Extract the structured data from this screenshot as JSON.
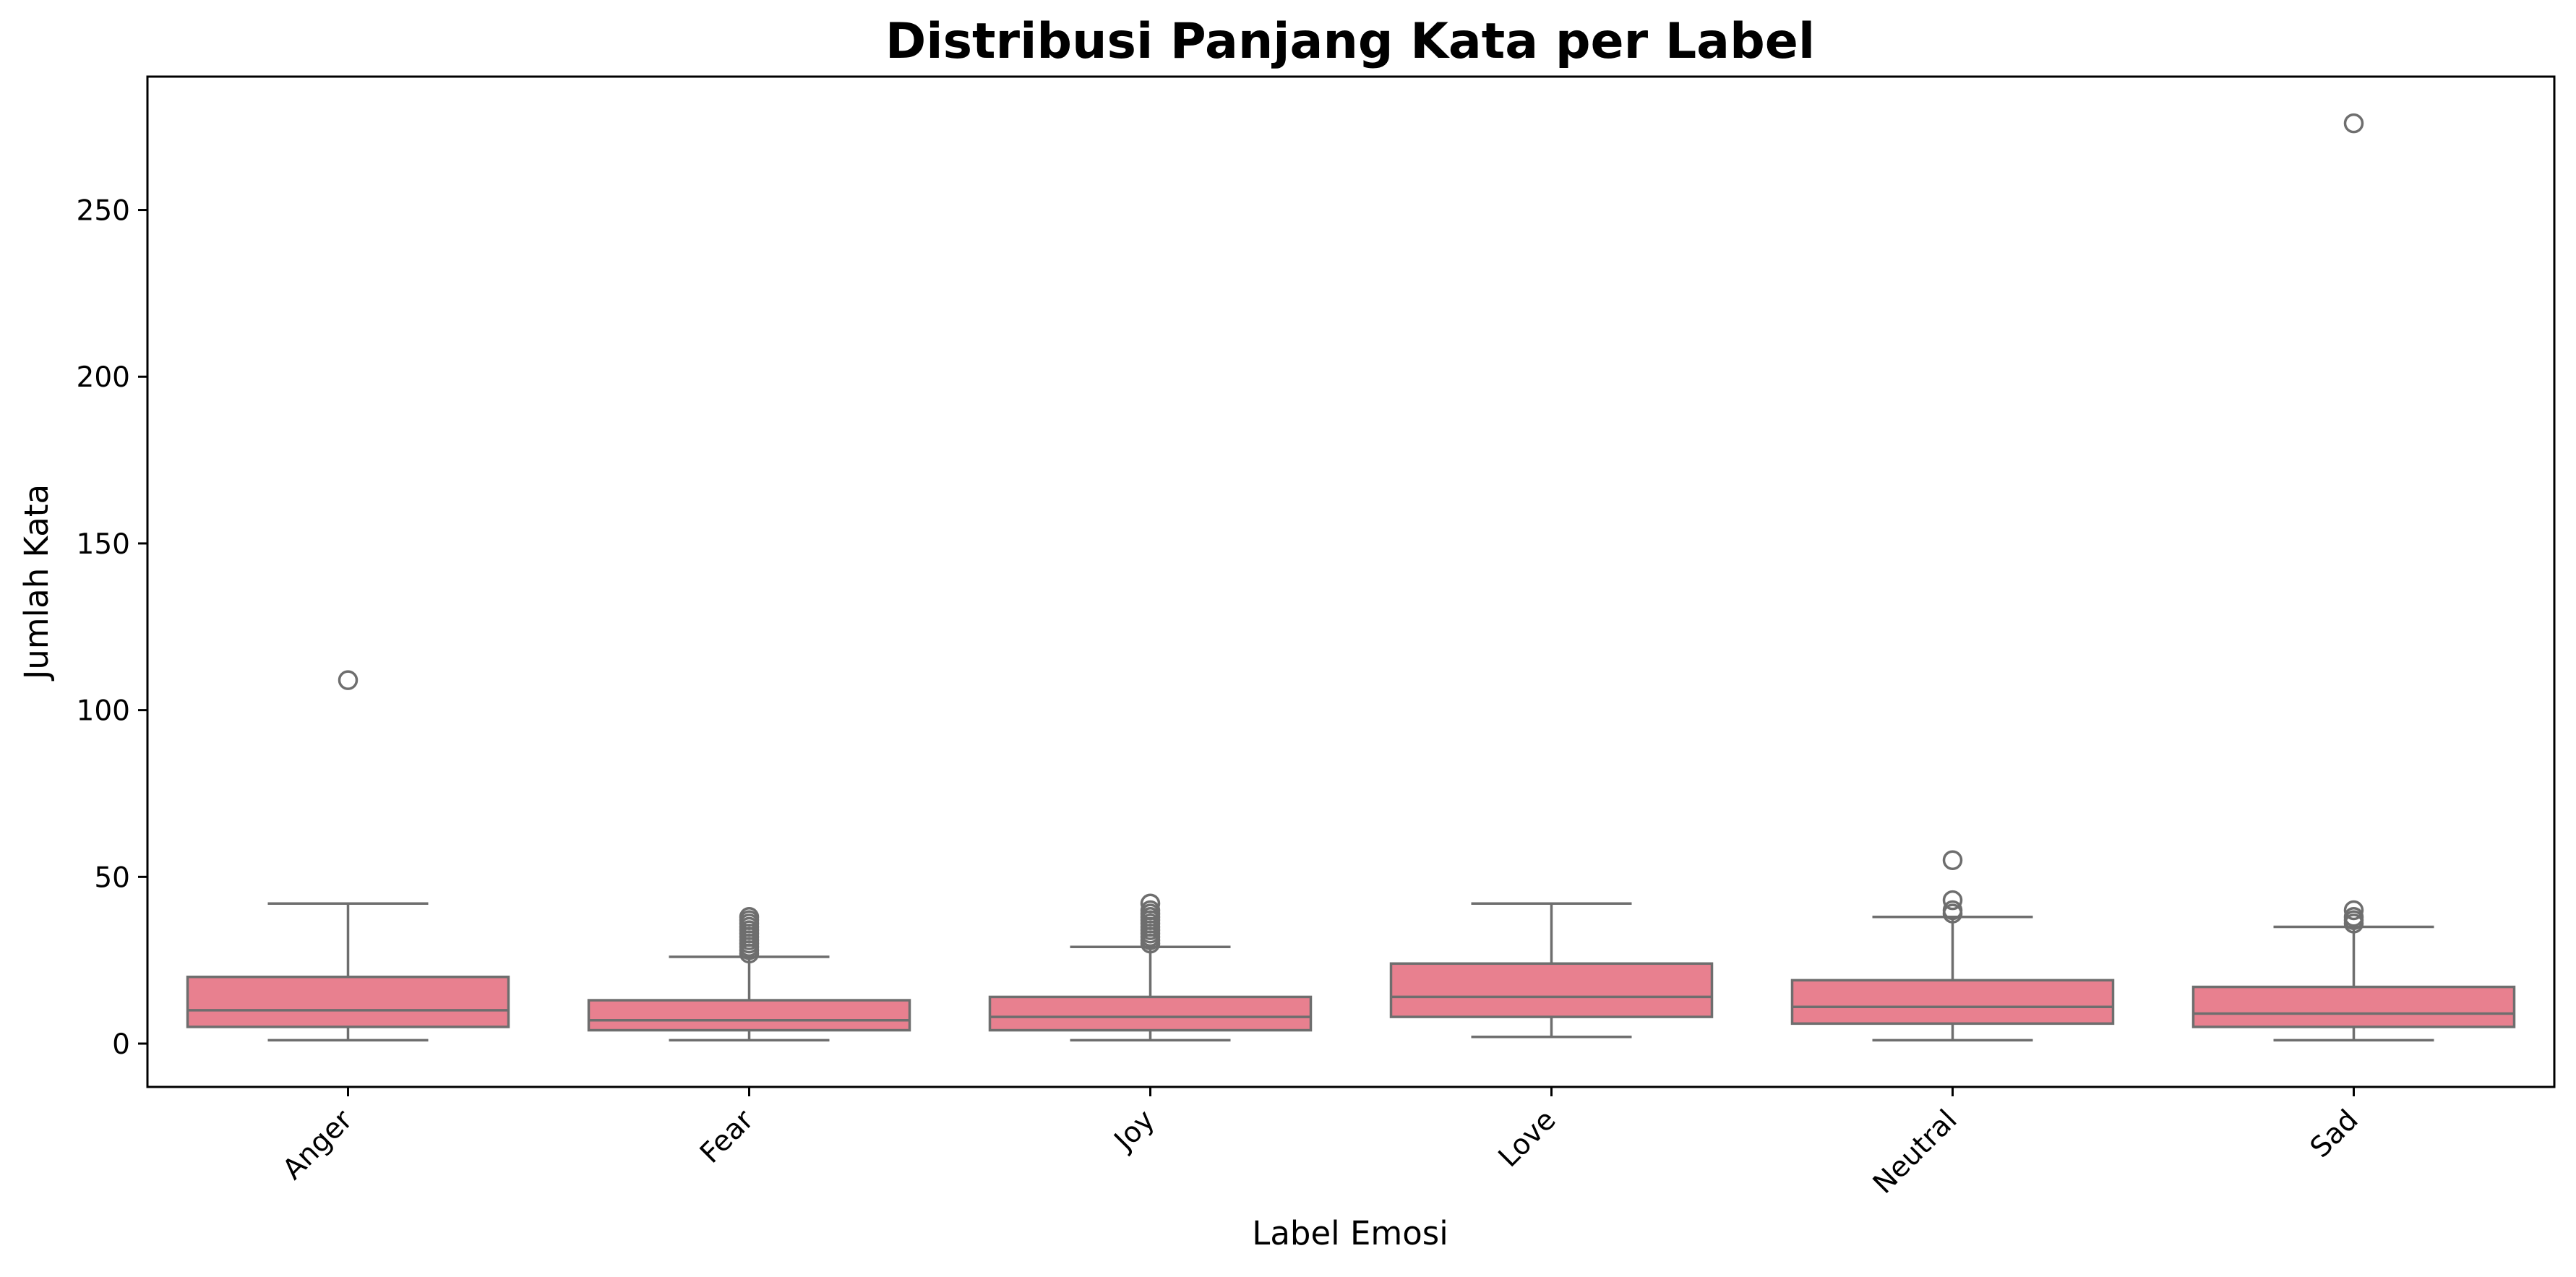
{
  "chart_data": {
    "type": "box",
    "title": "Distribusi Panjang Kata per Label",
    "xlabel": "Label Emosi",
    "ylabel": "Jumlah Kata",
    "categories": [
      "Anger",
      "Fear",
      "Joy",
      "Love",
      "Neutral",
      "Sad"
    ],
    "ylim": [
      -13,
      290
    ],
    "yticks": [
      0,
      50,
      100,
      150,
      200,
      250
    ],
    "ytick_labels": [
      "0",
      "50",
      "100",
      "150",
      "200",
      "250"
    ],
    "grid": false,
    "box_color": "#e8808f",
    "line_color": "#6e6e6e",
    "boxes": [
      {
        "label": "Anger",
        "whisker_low": 1,
        "q1": 5,
        "median": 10,
        "q3": 20,
        "whisker_high": 42,
        "outliers": [
          109
        ]
      },
      {
        "label": "Fear",
        "whisker_low": 1,
        "q1": 4,
        "median": 7,
        "q3": 13,
        "whisker_high": 26,
        "outliers": [
          27,
          28,
          29,
          30,
          31,
          32,
          33,
          34,
          35,
          36,
          37,
          38
        ]
      },
      {
        "label": "Joy",
        "whisker_low": 1,
        "q1": 4,
        "median": 8,
        "q3": 14,
        "whisker_high": 29,
        "outliers": [
          30,
          31,
          32,
          33,
          34,
          35,
          36,
          37,
          38,
          39,
          40,
          42
        ]
      },
      {
        "label": "Love",
        "whisker_low": 2,
        "q1": 8,
        "median": 14,
        "q3": 24,
        "whisker_high": 42,
        "outliers": []
      },
      {
        "label": "Neutral",
        "whisker_low": 1,
        "q1": 6,
        "median": 11,
        "q3": 19,
        "whisker_high": 38,
        "outliers": [
          39,
          40,
          43,
          55
        ]
      },
      {
        "label": "Sad",
        "whisker_low": 1,
        "q1": 5,
        "median": 9,
        "q3": 17,
        "whisker_high": 35,
        "outliers": [
          36,
          37,
          38,
          40,
          276
        ]
      }
    ]
  }
}
